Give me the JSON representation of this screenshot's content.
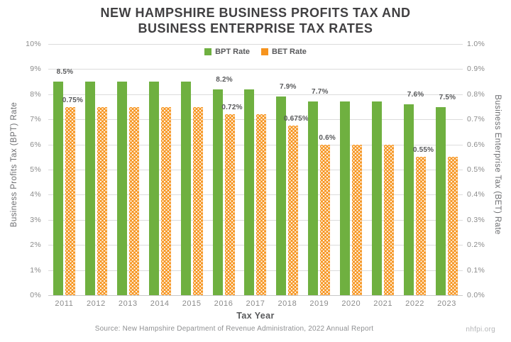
{
  "title": "NEW HAMPSHIRE BUSINESS PROFITS TAX AND BUSINESS ENTERPRISE TAX RATES",
  "title_lines": [
    "NEW HAMPSHIRE BUSINESS PROFITS TAX AND",
    "BUSINESS ENTERPRISE TAX RATES"
  ],
  "legend": {
    "bpt_label": "BPT Rate",
    "bet_label": "BET Rate"
  },
  "colors": {
    "bpt_green": "#6FB040",
    "bet_orange": "#F6941E",
    "title_gray": "#414042",
    "tick_gray": "#8b8b8b"
  },
  "axes": {
    "left_title": "Business Profits Tax (BPT) Rate",
    "right_title": "Business Enterprise Tax (BET) Rate",
    "x_title": "Tax Year",
    "left_ticks": [
      "10%",
      "9%",
      "8%",
      "7%",
      "6%",
      "5%",
      "4%",
      "3%",
      "2%",
      "1%",
      "0%"
    ],
    "right_ticks": [
      "1.0%",
      "0.9%",
      "0.8%",
      "0.7%",
      "0.6%",
      "0.5%",
      "0.4%",
      "0.3%",
      "0.2%",
      "0.1%",
      "0.0%"
    ]
  },
  "source": "Source: New Hampshire Department of Revenue Administration, 2022 Annual Report",
  "watermark": "nhfpi.org",
  "chart_data": {
    "type": "bar",
    "title": "NEW HAMPSHIRE BUSINESS PROFITS TAX AND BUSINESS ENTERPRISE TAX RATES",
    "xlabel": "Tax Year",
    "ylabel_left": "Business Profits Tax (BPT) Rate",
    "ylabel_right": "Business Enterprise Tax (BET) Rate",
    "grid": true,
    "legend_position": "top-center",
    "left_ylim": [
      0,
      10
    ],
    "right_ylim": [
      0,
      1.0
    ],
    "categories": [
      "2011",
      "2012",
      "2013",
      "2014",
      "2015",
      "2016",
      "2017",
      "2018",
      "2019",
      "2020",
      "2021",
      "2022",
      "2023"
    ],
    "series": [
      {
        "name": "BPT Rate",
        "axis": "left",
        "color": "#6FB040",
        "values": [
          8.5,
          8.5,
          8.5,
          8.5,
          8.5,
          8.2,
          8.2,
          7.9,
          7.7,
          7.7,
          7.7,
          7.6,
          7.5
        ],
        "labels": {
          "2011": "8.5%",
          "2016": "8.2%",
          "2018": "7.9%",
          "2019": "7.7%",
          "2022": "7.6%",
          "2023": "7.5%"
        }
      },
      {
        "name": "BET Rate",
        "axis": "right",
        "color": "#F6941E",
        "values": [
          0.75,
          0.75,
          0.75,
          0.75,
          0.75,
          0.72,
          0.72,
          0.675,
          0.6,
          0.6,
          0.6,
          0.55,
          0.55
        ],
        "labels": {
          "2011": "0.75%",
          "2016": "0.72%",
          "2018": "0.675%",
          "2019": "0.6%",
          "2022": "0.55%"
        }
      }
    ]
  }
}
